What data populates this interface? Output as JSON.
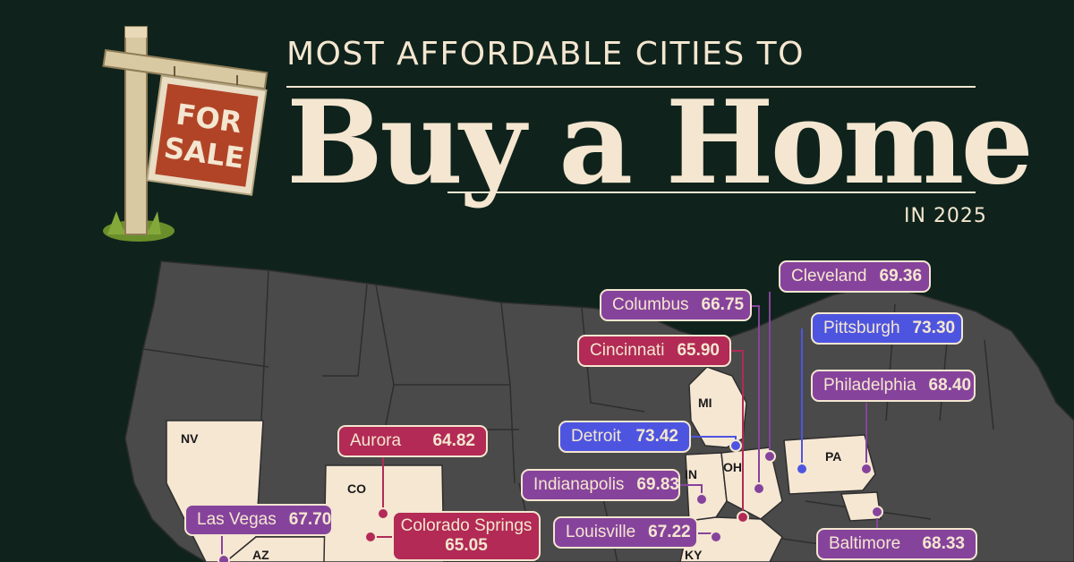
{
  "title": {
    "kicker": "MOST AFFORDABLE CITIES TO",
    "main": "Buy a Home",
    "year": "IN 2025"
  },
  "sign": {
    "line1": "FOR",
    "line2": "SALE"
  },
  "colors": {
    "background": "#0f231c",
    "cream": "#f4e6d0",
    "map_dark": "#4a4a4a",
    "map_light": "#f6e7d3",
    "tier_low": "#b22a55",
    "tier_mid": "#86439c",
    "tier_high": "#4d55e0"
  },
  "states": [
    "NV",
    "CO",
    "AZ",
    "MI",
    "IN",
    "OH",
    "PA",
    "KY"
  ],
  "cities": [
    {
      "name": "Cleveland",
      "score": "69.36",
      "tier": "mid"
    },
    {
      "name": "Columbus",
      "score": "66.75",
      "tier": "mid"
    },
    {
      "name": "Pittsburgh",
      "score": "73.30",
      "tier": "high"
    },
    {
      "name": "Cincinnati",
      "score": "65.90",
      "tier": "low"
    },
    {
      "name": "Philadelphia",
      "score": "68.40",
      "tier": "mid"
    },
    {
      "name": "Aurora",
      "score": "64.82",
      "tier": "low"
    },
    {
      "name": "Detroit",
      "score": "73.42",
      "tier": "high"
    },
    {
      "name": "Indianapolis",
      "score": "69.83",
      "tier": "mid"
    },
    {
      "name": "Las Vegas",
      "score": "67.70",
      "tier": "mid"
    },
    {
      "name": "Colorado Springs",
      "score": "65.05",
      "tier": "low"
    },
    {
      "name": "Louisville",
      "score": "67.22",
      "tier": "mid"
    },
    {
      "name": "Baltimore",
      "score": "68.33",
      "tier": "mid"
    }
  ]
}
